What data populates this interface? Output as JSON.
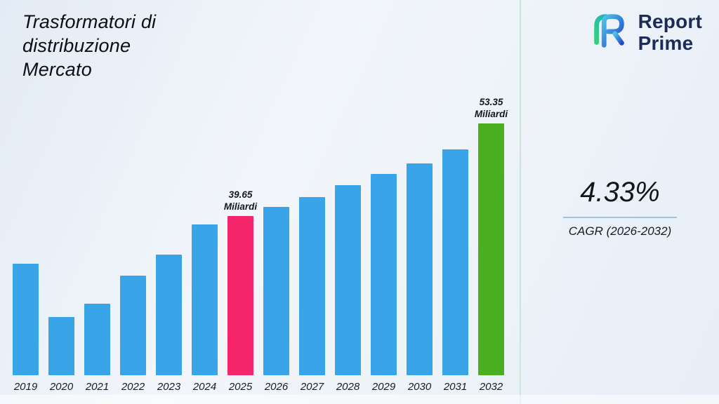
{
  "header": {
    "title_lines": [
      "Trasformatori di",
      "distribuzione",
      "Mercato"
    ]
  },
  "logo": {
    "line1": "Report",
    "line2": "Prime"
  },
  "cagr": {
    "value": "4.33%",
    "label": "CAGR (2026-2032)"
  },
  "chart_data": {
    "type": "bar",
    "title": "Trasformatori di distribuzione Mercato",
    "unit": "Miliardi",
    "categories": [
      "2019",
      "2020",
      "2021",
      "2022",
      "2023",
      "2024",
      "2025",
      "2026",
      "2027",
      "2028",
      "2029",
      "2030",
      "2031",
      "2032"
    ],
    "values": [
      32.6,
      24.6,
      26.6,
      30.8,
      33.9,
      38.4,
      39.65,
      41.0,
      42.5,
      44.2,
      45.9,
      47.5,
      49.5,
      53.35
    ],
    "labeled_points": [
      {
        "category": "2025",
        "label": "39.65",
        "unit": "Miliardi"
      },
      {
        "category": "2032",
        "label": "53.35",
        "unit": "Miliardi"
      }
    ],
    "colors": {
      "bar": "#3AA4E9",
      "highlight_2025": "#F5256C",
      "highlight_2032": "#49AE20"
    },
    "ylim": [
      16,
      56
    ],
    "baseline_value": 16,
    "y_axis_visible": false,
    "grid": false,
    "legend": false,
    "xlabel": "",
    "ylabel": ""
  }
}
